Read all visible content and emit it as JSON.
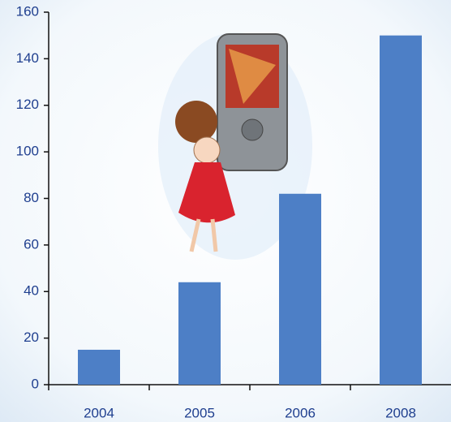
{
  "chart_data": {
    "type": "bar",
    "categories": [
      "2004",
      "2005",
      "2006",
      "2008"
    ],
    "values": [
      15,
      44,
      82,
      150
    ],
    "color": "#4d7fc6",
    "ylim": [
      0,
      160
    ],
    "yticks": [
      0,
      20,
      40,
      60,
      80,
      100,
      120,
      140,
      160
    ]
  }
}
